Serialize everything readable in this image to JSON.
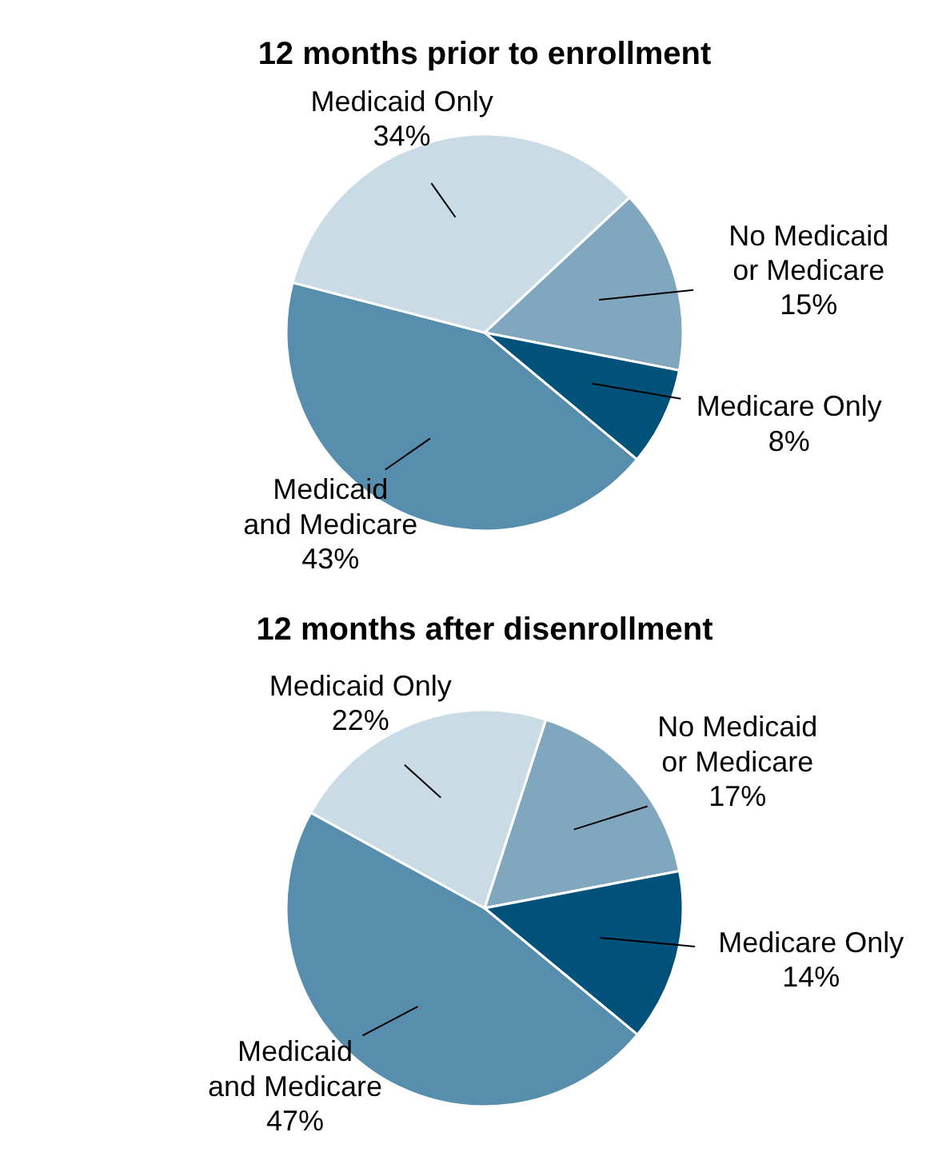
{
  "chart_data": [
    {
      "type": "pie",
      "title": "12 months prior to enrollment",
      "categories": [
        "No Medicaid\nor Medicare",
        "Medicare Only",
        "Medicaid\nand Medicare",
        "Medicaid Only"
      ],
      "values": [
        15,
        8,
        43,
        34
      ],
      "value_labels": [
        "15%",
        "8%",
        "43%",
        "34%"
      ],
      "colors": [
        "#81a7bf",
        "#00527a",
        "#588ead",
        "#c9dce6"
      ]
    },
    {
      "type": "pie",
      "title": "12 months after disenrollment",
      "categories": [
        "No Medicaid\nor Medicare",
        "Medicare Only",
        "Medicaid\nand Medicare",
        "Medicaid Only"
      ],
      "values": [
        17,
        14,
        47,
        22
      ],
      "value_labels": [
        "17%",
        "14%",
        "47%",
        "22%"
      ],
      "colors": [
        "#81a7bf",
        "#00527a",
        "#588ead",
        "#c9dce6"
      ]
    }
  ]
}
